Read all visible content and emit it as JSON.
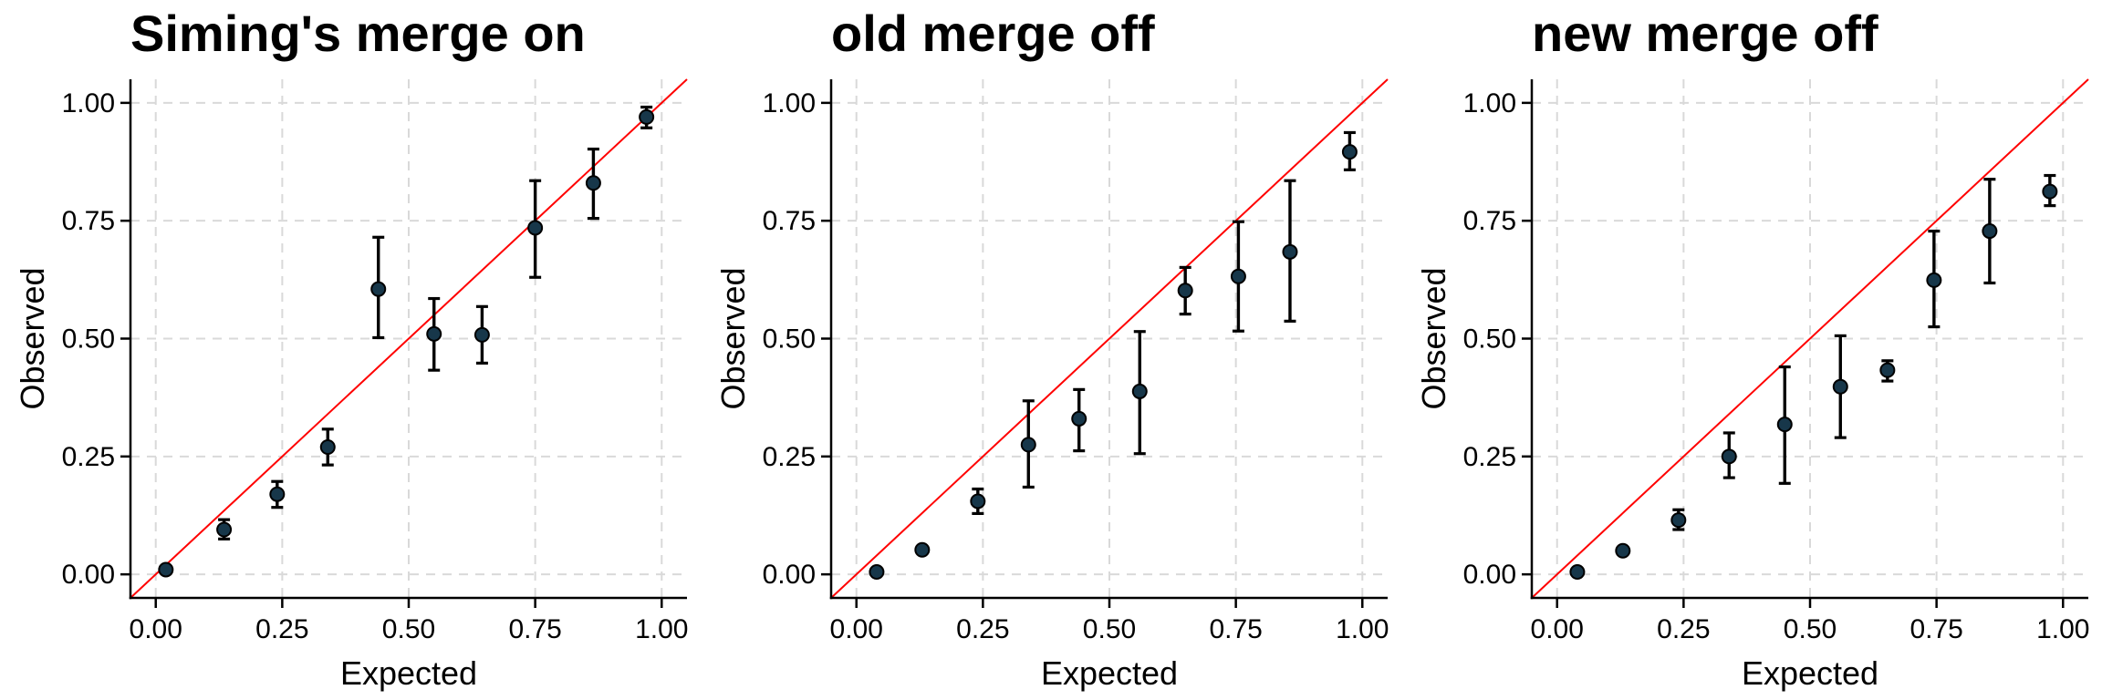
{
  "figure": {
    "background": "#ffffff",
    "panel_count": 3
  },
  "style": {
    "point_color": "#17374a",
    "point_stroke": "#000000",
    "errorbar_color": "#000000",
    "grid_color": "#d9d9d9",
    "axis_color": "#000000",
    "text_color": "#000000",
    "diagonal_color": "#ff0000",
    "background": "#ffffff"
  },
  "chart_data": [
    {
      "type": "scatter",
      "title": "Siming's merge on",
      "xlabel": "Expected",
      "ylabel": "Observed",
      "xlim": [
        -0.05,
        1.05
      ],
      "ylim": [
        -0.05,
        1.05
      ],
      "xticks": [
        0,
        0.25,
        0.5,
        0.75,
        1
      ],
      "xtick_labels": [
        "0.00",
        "0.25",
        "0.50",
        "0.75",
        "1.00"
      ],
      "yticks": [
        0,
        0.25,
        0.5,
        0.75,
        1
      ],
      "ytick_labels": [
        "0.00",
        "0.25",
        "0.50",
        "0.75",
        "1.00"
      ],
      "grid": "major-dashed",
      "legend": "none",
      "identity_line": {
        "intercept": 0,
        "slope": 1,
        "color": "#ff0000"
      },
      "series": [
        {
          "name": "calibration-points",
          "points": [
            {
              "x": 0.02,
              "y": 0.01,
              "ymin": 0.002,
              "ymax": 0.018
            },
            {
              "x": 0.135,
              "y": 0.095,
              "ymin": 0.075,
              "ymax": 0.116
            },
            {
              "x": 0.24,
              "y": 0.17,
              "ymin": 0.142,
              "ymax": 0.197
            },
            {
              "x": 0.34,
              "y": 0.27,
              "ymin": 0.232,
              "ymax": 0.308
            },
            {
              "x": 0.44,
              "y": 0.605,
              "ymin": 0.502,
              "ymax": 0.715
            },
            {
              "x": 0.55,
              "y": 0.51,
              "ymin": 0.433,
              "ymax": 0.585
            },
            {
              "x": 0.645,
              "y": 0.508,
              "ymin": 0.448,
              "ymax": 0.568
            },
            {
              "x": 0.75,
              "y": 0.735,
              "ymin": 0.63,
              "ymax": 0.835
            },
            {
              "x": 0.865,
              "y": 0.83,
              "ymin": 0.755,
              "ymax": 0.902
            },
            {
              "x": 0.97,
              "y": 0.97,
              "ymin": 0.947,
              "ymax": 0.991
            }
          ]
        }
      ]
    },
    {
      "type": "scatter",
      "title": "old merge off",
      "xlabel": "Expected",
      "ylabel": "Observed",
      "xlim": [
        -0.05,
        1.05
      ],
      "ylim": [
        -0.05,
        1.05
      ],
      "xticks": [
        0,
        0.25,
        0.5,
        0.75,
        1
      ],
      "xtick_labels": [
        "0.00",
        "0.25",
        "0.50",
        "0.75",
        "1.00"
      ],
      "yticks": [
        0,
        0.25,
        0.5,
        0.75,
        1
      ],
      "ytick_labels": [
        "0.00",
        "0.25",
        "0.50",
        "0.75",
        "1.00"
      ],
      "grid": "major-dashed",
      "legend": "none",
      "identity_line": {
        "intercept": 0,
        "slope": 1,
        "color": "#ff0000"
      },
      "series": [
        {
          "name": "calibration-points",
          "points": [
            {
              "x": 0.04,
              "y": 0.005,
              "ymin": 0.0,
              "ymax": 0.013
            },
            {
              "x": 0.13,
              "y": 0.052,
              "ymin": 0.044,
              "ymax": 0.06
            },
            {
              "x": 0.24,
              "y": 0.155,
              "ymin": 0.129,
              "ymax": 0.181
            },
            {
              "x": 0.34,
              "y": 0.275,
              "ymin": 0.185,
              "ymax": 0.368
            },
            {
              "x": 0.44,
              "y": 0.33,
              "ymin": 0.262,
              "ymax": 0.392
            },
            {
              "x": 0.56,
              "y": 0.388,
              "ymin": 0.256,
              "ymax": 0.515
            },
            {
              "x": 0.65,
              "y": 0.602,
              "ymin": 0.552,
              "ymax": 0.651
            },
            {
              "x": 0.755,
              "y": 0.632,
              "ymin": 0.516,
              "ymax": 0.748
            },
            {
              "x": 0.857,
              "y": 0.684,
              "ymin": 0.537,
              "ymax": 0.835
            },
            {
              "x": 0.975,
              "y": 0.896,
              "ymin": 0.858,
              "ymax": 0.937
            }
          ]
        }
      ]
    },
    {
      "type": "scatter",
      "title": "new merge off",
      "xlabel": "Expected",
      "ylabel": "Observed",
      "xlim": [
        -0.05,
        1.05
      ],
      "ylim": [
        -0.05,
        1.05
      ],
      "xticks": [
        0,
        0.25,
        0.5,
        0.75,
        1
      ],
      "xtick_labels": [
        "0.00",
        "0.25",
        "0.50",
        "0.75",
        "1.00"
      ],
      "yticks": [
        0,
        0.25,
        0.5,
        0.75,
        1
      ],
      "ytick_labels": [
        "0.00",
        "0.25",
        "0.50",
        "0.75",
        "1.00"
      ],
      "grid": "major-dashed",
      "legend": "none",
      "identity_line": {
        "intercept": 0,
        "slope": 1,
        "color": "#ff0000"
      },
      "series": [
        {
          "name": "calibration-points",
          "points": [
            {
              "x": 0.04,
              "y": 0.005,
              "ymin": 0.0,
              "ymax": 0.013
            },
            {
              "x": 0.13,
              "y": 0.05,
              "ymin": 0.042,
              "ymax": 0.058
            },
            {
              "x": 0.24,
              "y": 0.115,
              "ymin": 0.095,
              "ymax": 0.137
            },
            {
              "x": 0.34,
              "y": 0.25,
              "ymin": 0.205,
              "ymax": 0.3
            },
            {
              "x": 0.45,
              "y": 0.318,
              "ymin": 0.193,
              "ymax": 0.44
            },
            {
              "x": 0.56,
              "y": 0.398,
              "ymin": 0.29,
              "ymax": 0.506
            },
            {
              "x": 0.653,
              "y": 0.433,
              "ymin": 0.41,
              "ymax": 0.453
            },
            {
              "x": 0.745,
              "y": 0.624,
              "ymin": 0.525,
              "ymax": 0.728
            },
            {
              "x": 0.855,
              "y": 0.728,
              "ymin": 0.618,
              "ymax": 0.838
            },
            {
              "x": 0.974,
              "y": 0.812,
              "ymin": 0.782,
              "ymax": 0.846
            }
          ]
        }
      ]
    }
  ]
}
